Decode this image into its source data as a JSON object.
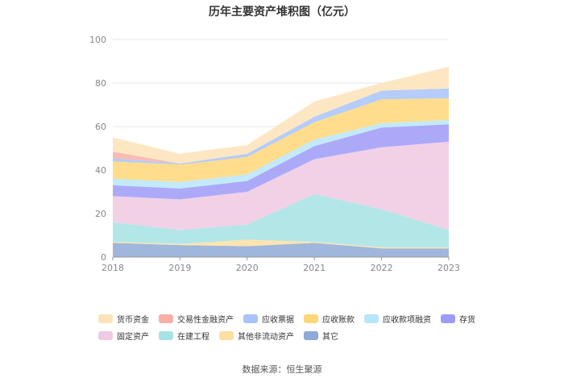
{
  "chart_data": {
    "type": "area",
    "title": "历年主要资产堆积图（亿元）",
    "categories": [
      "2018",
      "2019",
      "2020",
      "2021",
      "2022",
      "2023"
    ],
    "ylim": [
      0,
      100
    ],
    "yticks": [
      "0",
      "20",
      "40",
      "60",
      "80",
      "100"
    ],
    "stacked": true,
    "grid": true,
    "legend_position": "bottom",
    "series": [
      {
        "name": "其它",
        "color": "#8FA9D6",
        "values": [
          6.5,
          5.5,
          5,
          6.5,
          4,
          4
        ]
      },
      {
        "name": "其他非流动资产",
        "color": "#FDDFA2",
        "values": [
          0.5,
          0.5,
          3,
          0.5,
          0.5,
          0.5
        ]
      },
      {
        "name": "在建工程",
        "color": "#A6E3E3",
        "values": [
          9,
          6.5,
          7,
          22,
          17.5,
          8
        ]
      },
      {
        "name": "固定资产",
        "color": "#F0C9E3",
        "values": [
          12,
          14,
          15,
          16,
          28.5,
          40.5
        ]
      },
      {
        "name": "存货",
        "color": "#9D9BF7",
        "values": [
          5,
          5,
          5,
          6,
          9,
          8
        ]
      },
      {
        "name": "应收款项融资",
        "color": "#B7E6F9",
        "values": [
          3,
          3,
          3,
          3,
          2,
          2
        ]
      },
      {
        "name": "应收账款",
        "color": "#FFD778",
        "values": [
          8,
          8,
          8,
          8,
          11,
          10
        ]
      },
      {
        "name": "应收票据",
        "color": "#A9C3F9",
        "values": [
          1.5,
          0.5,
          1.5,
          2.5,
          4,
          4.5
        ]
      },
      {
        "name": "交易性金融资产",
        "color": "#F9AFA5",
        "values": [
          3,
          0,
          0,
          0,
          0,
          0
        ]
      },
      {
        "name": "货币资金",
        "color": "#FDE3B9",
        "values": [
          6.5,
          4.5,
          4,
          7,
          3.5,
          10
        ]
      }
    ]
  },
  "legend_order": [
    "货币资金",
    "交易性金融资产",
    "应收票据",
    "应收账款",
    "应收款项融资",
    "存货",
    "固定资产",
    "在建工程",
    "其他非流动资产",
    "其它"
  ],
  "source": "数据来源：恒生聚源"
}
